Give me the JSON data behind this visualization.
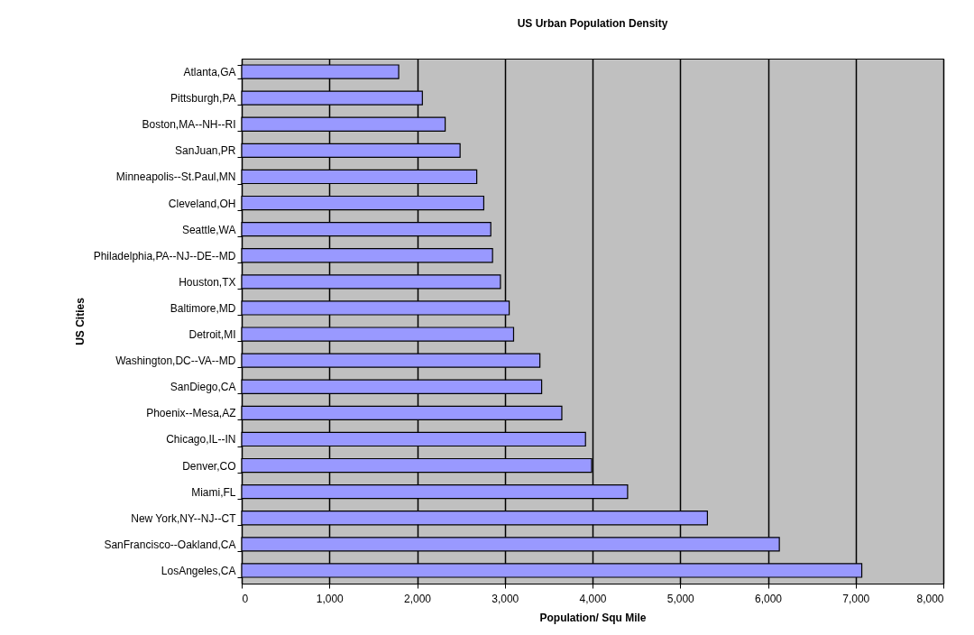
{
  "chart_data": {
    "type": "bar",
    "orientation": "horizontal",
    "title": "US Urban Population Density",
    "xlabel": "Population/ Squ Mile",
    "ylabel": "US Cities",
    "categories": [
      "Atlanta,GA",
      "Pittsburgh,PA",
      "Boston,MA--NH--RI",
      "SanJuan,PR",
      "Minneapolis--St.Paul,MN",
      "Cleveland,OH",
      "Seattle,WA",
      "Philadelphia,PA--NJ--DE--MD",
      "Houston,TX",
      "Baltimore,MD",
      "Detroit,MI",
      "Washington,DC--VA--MD",
      "SanDiego,CA",
      "Phoenix--Mesa,AZ",
      "Chicago,IL--IN",
      "Denver,CO",
      "Miami,FL",
      "New York,NY--NJ--CT",
      "SanFrancisco--Oakland,CA",
      "LosAngeles,CA"
    ],
    "values": [
      1790,
      2060,
      2320,
      2490,
      2680,
      2760,
      2840,
      2860,
      2950,
      3050,
      3100,
      3400,
      3420,
      3650,
      3920,
      3990,
      4400,
      5310,
      6130,
      7070
    ],
    "color": "#9999ff",
    "xlim": [
      0,
      8000
    ],
    "xticks": [
      {
        "value": 0,
        "label": "0"
      },
      {
        "value": 1000,
        "label": "1,000"
      },
      {
        "value": 2000,
        "label": "2,000"
      },
      {
        "value": 3000,
        "label": "3,000"
      },
      {
        "value": 4000,
        "label": "4,000"
      },
      {
        "value": 5000,
        "label": "5,000"
      },
      {
        "value": 6000,
        "label": "6,000"
      },
      {
        "value": 7000,
        "label": "7,000"
      },
      {
        "value": 8000,
        "label": "8,000"
      }
    ],
    "grid": "x"
  }
}
